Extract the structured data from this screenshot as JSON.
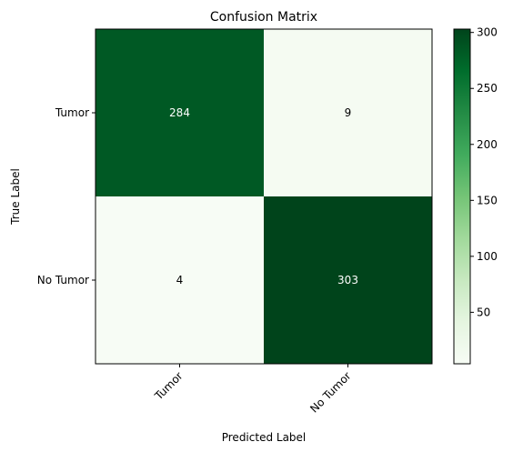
{
  "chart_data": {
    "type": "heatmap",
    "title": "Confusion Matrix",
    "xlabel": "Predicted Label",
    "ylabel": "True Label",
    "x_categories": [
      "Tumor",
      "No Tumor"
    ],
    "y_categories": [
      "Tumor",
      "No Tumor"
    ],
    "values": [
      [
        284,
        9
      ],
      [
        4,
        303
      ]
    ],
    "colormap": "Greens",
    "color_range": [
      4,
      303
    ],
    "colorbar_ticks": [
      50,
      100,
      150,
      200,
      250,
      300
    ],
    "grid": false
  }
}
